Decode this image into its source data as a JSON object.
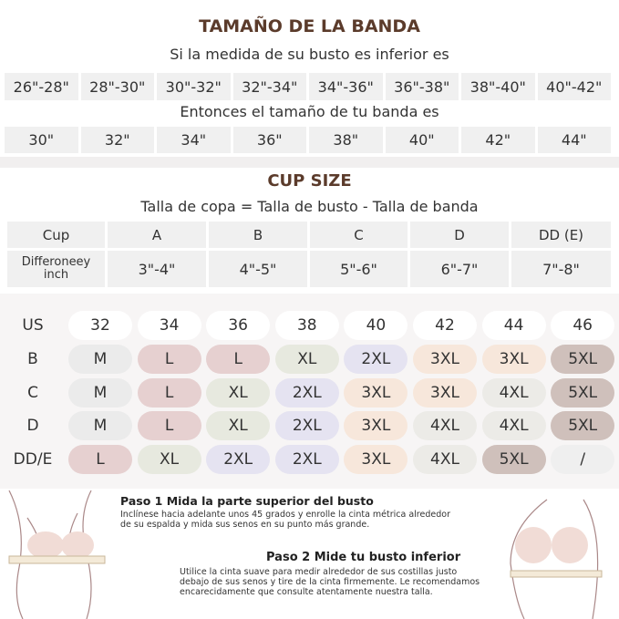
{
  "band": {
    "title": "TAMAÑO DE LA BANDA",
    "bust_label": "Si la medida de su busto es inferior es",
    "bust_ranges": [
      "26\"-28\"",
      "28\"-30\"",
      "30\"-32\"",
      "32\"-34\"",
      "34\"-36\"",
      "36\"-38\"",
      "38\"-40\"",
      "40\"-42\""
    ],
    "size_label": "Entonces el tamaño de tu banda es",
    "sizes": [
      "30\"",
      "32\"",
      "34\"",
      "36\"",
      "38\"",
      "40\"",
      "42\"",
      "44\""
    ]
  },
  "cup": {
    "title": "CUP SIZE",
    "formula": "Talla de copa = Talla de busto - Talla de banda",
    "header": [
      "Cup",
      "A",
      "B",
      "C",
      "D",
      "DD (E)"
    ],
    "diff_label": "Differoneey inch",
    "diffs": [
      "3\"-4\"",
      "4\"-5\"",
      "5\"-6\"",
      "6\"-7\"",
      "7\"-8\""
    ]
  },
  "size_chart": {
    "header": [
      "US",
      "32",
      "34",
      "36",
      "38",
      "40",
      "42",
      "44",
      "46"
    ],
    "rows": [
      {
        "label": "B",
        "cells": [
          "M",
          "L",
          "L",
          "XL",
          "2XL",
          "3XL",
          "3XL",
          "5XL"
        ]
      },
      {
        "label": "C",
        "cells": [
          "M",
          "L",
          "XL",
          "2XL",
          "3XL",
          "3XL",
          "4XL",
          "5XL"
        ]
      },
      {
        "label": "D",
        "cells": [
          "M",
          "L",
          "XL",
          "2XL",
          "3XL",
          "4XL",
          "4XL",
          "5XL"
        ]
      },
      {
        "label": "DD/E",
        "cells": [
          "L",
          "XL",
          "2XL",
          "2XL",
          "3XL",
          "4XL",
          "5XL",
          "/"
        ]
      }
    ],
    "palette": {
      "M": "#ebebeb",
      "L": "#e6d0d0",
      "XL": "#e7e9df",
      "2XL": "#e5e3f1",
      "3XL": "#f7e7db",
      "4XL": "#ecebe7",
      "5XL": "#cfc0bb",
      "/": "#efefef"
    }
  },
  "steps": [
    {
      "title": "Paso 1 Mida la parte superior del busto",
      "text": "Inclínese hacia adelante unos 45 grados y enrolle la cinta métrica alrededor de su espalda y mida sus senos en su punto más grande."
    },
    {
      "title": "Paso 2 Mide tu busto inferior",
      "text": "Utilice la cinta suave para medir alrededor de sus costillas justo debajo de sus senos y tire de la cinta firmemente. Le recomendamos encarecidamente que consulte atentamente nuestra talla."
    }
  ]
}
